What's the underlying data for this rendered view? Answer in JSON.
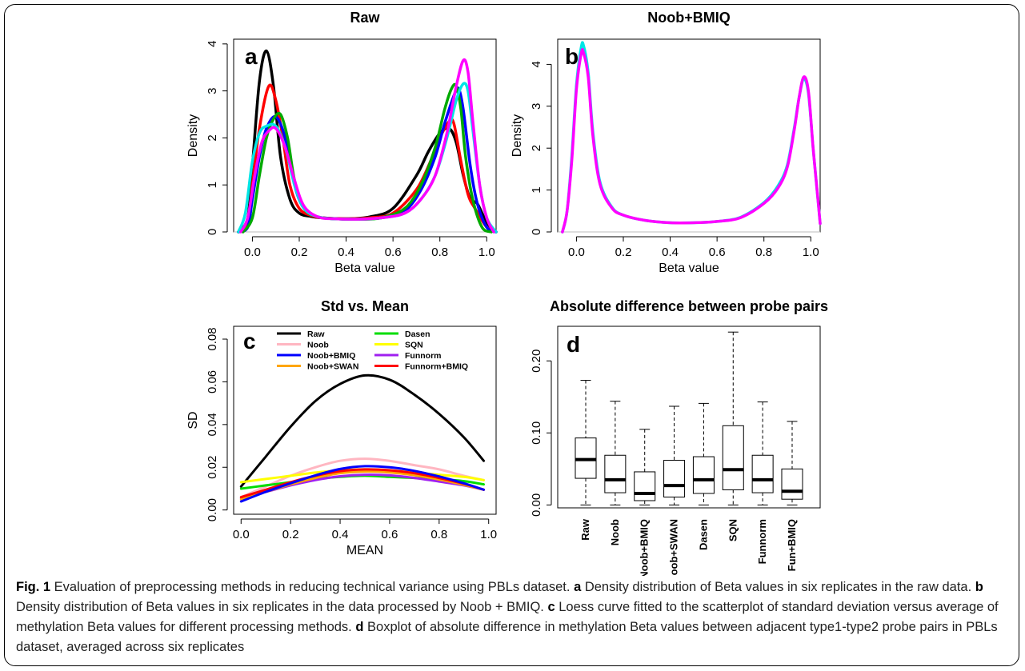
{
  "caption": {
    "fig_label": "Fig. 1",
    "intro": " Evaluation of preprocessing methods in reducing technical variance using PBLs dataset. ",
    "a_label": "a",
    "a_text": " Density distribution of Beta values in six replicates in the raw data. ",
    "b_label": "b",
    "b_text": " Density distribution of Beta values in six replicates in the data processed by Noob + BMIQ. ",
    "c_label": "c",
    "c_text": " Loess curve fitted to the scatterplot of standard deviation versus average of methylation Beta values for different processing methods. ",
    "d_label": "d",
    "d_text": " Boxplot of absolute difference in methylation Beta values between adjacent type1-type2 probe pairs in PBLs dataset, averaged across six replicates"
  },
  "chart_data": [
    {
      "panel": "a",
      "type": "line",
      "title": "Raw",
      "xlabel": "Beta value",
      "ylabel": "Density",
      "xlim": [
        -0.08,
        1.04
      ],
      "ylim": [
        0,
        4.1
      ],
      "xticks": [
        "0.0",
        "0.2",
        "0.4",
        "0.6",
        "0.8",
        "1.0"
      ],
      "yticks": [
        "0",
        "1",
        "2",
        "3",
        "4"
      ],
      "series": [
        {
          "color": "#000000",
          "x": [
            -0.06,
            -0.02,
            0.0,
            0.03,
            0.06,
            0.09,
            0.12,
            0.16,
            0.2,
            0.25,
            0.3,
            0.4,
            0.5,
            0.6,
            0.7,
            0.75,
            0.8,
            0.84,
            0.87,
            0.9,
            0.93,
            0.96,
            1.0,
            1.04
          ],
          "y": [
            0,
            0.3,
            1.4,
            3.2,
            3.85,
            3.1,
            1.6,
            0.7,
            0.4,
            0.33,
            0.3,
            0.28,
            0.32,
            0.5,
            1.2,
            1.7,
            2.1,
            2.2,
            1.9,
            1.2,
            0.7,
            0.6,
            0.2,
            0
          ]
        },
        {
          "color": "#ff0000",
          "x": [
            -0.06,
            -0.02,
            0.0,
            0.03,
            0.07,
            0.1,
            0.13,
            0.16,
            0.2,
            0.25,
            0.3,
            0.4,
            0.5,
            0.6,
            0.7,
            0.76,
            0.8,
            0.84,
            0.86,
            0.89,
            0.92,
            0.95,
            1.0,
            1.04
          ],
          "y": [
            0,
            0.2,
            1.0,
            2.2,
            3.1,
            2.8,
            2.0,
            1.0,
            0.5,
            0.35,
            0.3,
            0.28,
            0.3,
            0.4,
            0.9,
            1.5,
            2.0,
            2.35,
            2.3,
            1.5,
            0.8,
            0.5,
            0.1,
            0
          ]
        },
        {
          "color": "#0000ff",
          "x": [
            -0.06,
            -0.02,
            0.0,
            0.03,
            0.06,
            0.1,
            0.14,
            0.18,
            0.22,
            0.28,
            0.35,
            0.45,
            0.55,
            0.65,
            0.72,
            0.78,
            0.82,
            0.86,
            0.88,
            0.9,
            0.93,
            0.96,
            1.0,
            1.04
          ],
          "y": [
            0,
            0.1,
            0.7,
            1.6,
            2.2,
            2.45,
            2.0,
            1.0,
            0.5,
            0.32,
            0.28,
            0.27,
            0.3,
            0.45,
            0.9,
            1.6,
            2.3,
            2.9,
            3.05,
            2.6,
            1.4,
            0.6,
            0.1,
            0
          ]
        },
        {
          "color": "#00aa00",
          "x": [
            -0.04,
            0.0,
            0.03,
            0.06,
            0.09,
            0.12,
            0.15,
            0.18,
            0.22,
            0.28,
            0.35,
            0.45,
            0.55,
            0.65,
            0.72,
            0.78,
            0.82,
            0.85,
            0.87,
            0.89,
            0.91,
            0.94,
            0.98,
            1.02
          ],
          "y": [
            0,
            0.3,
            1.2,
            2.0,
            2.4,
            2.5,
            2.0,
            1.1,
            0.5,
            0.32,
            0.28,
            0.27,
            0.3,
            0.5,
            1.0,
            1.8,
            2.6,
            3.05,
            3.1,
            2.6,
            1.6,
            0.7,
            0.1,
            0
          ]
        },
        {
          "color": "#00e5e5",
          "x": [
            -0.06,
            -0.03,
            0.0,
            0.03,
            0.06,
            0.1,
            0.14,
            0.18,
            0.22,
            0.28,
            0.35,
            0.45,
            0.55,
            0.65,
            0.72,
            0.78,
            0.83,
            0.87,
            0.9,
            0.92,
            0.94,
            0.97,
            1.0,
            1.04
          ],
          "y": [
            0,
            0.4,
            1.5,
            2.1,
            2.25,
            2.25,
            1.8,
            1.0,
            0.5,
            0.32,
            0.28,
            0.27,
            0.3,
            0.4,
            0.7,
            1.2,
            2.0,
            2.8,
            3.15,
            3.0,
            2.2,
            1.0,
            0.3,
            0
          ]
        },
        {
          "color": "#ff00ff",
          "x": [
            -0.05,
            -0.02,
            0.01,
            0.04,
            0.07,
            0.1,
            0.14,
            0.18,
            0.22,
            0.28,
            0.35,
            0.45,
            0.55,
            0.65,
            0.72,
            0.78,
            0.83,
            0.87,
            0.9,
            0.92,
            0.94,
            0.97,
            1.0,
            1.03
          ],
          "y": [
            0,
            0.3,
            1.2,
            1.9,
            2.15,
            2.2,
            1.8,
            1.1,
            0.55,
            0.32,
            0.28,
            0.27,
            0.3,
            0.4,
            0.7,
            1.2,
            2.1,
            3.1,
            3.65,
            3.4,
            2.4,
            1.0,
            0.3,
            0
          ]
        }
      ]
    },
    {
      "panel": "b",
      "type": "line",
      "title": "Noob+BMIQ",
      "xlabel": "Beta value",
      "ylabel": "Density",
      "xlim": [
        -0.08,
        1.04
      ],
      "ylim": [
        0,
        4.6
      ],
      "xticks": [
        "0.0",
        "0.2",
        "0.4",
        "0.6",
        "0.8",
        "1.0"
      ],
      "yticks": [
        "0",
        "1",
        "2",
        "3",
        "4"
      ],
      "series": [
        {
          "color": "#00e5e5",
          "x": [
            -0.06,
            -0.04,
            -0.02,
            0.0,
            0.02,
            0.03,
            0.05,
            0.07,
            0.1,
            0.15,
            0.2,
            0.3,
            0.4,
            0.5,
            0.6,
            0.7,
            0.8,
            0.86,
            0.9,
            0.93,
            0.95,
            0.97,
            0.99,
            1.01,
            1.03,
            1.04
          ],
          "y": [
            0,
            0.5,
            1.8,
            3.5,
            4.4,
            4.45,
            3.8,
            2.4,
            1.2,
            0.6,
            0.4,
            0.27,
            0.22,
            0.22,
            0.25,
            0.35,
            0.7,
            1.1,
            1.6,
            2.5,
            3.2,
            3.65,
            3.3,
            2.0,
            0.8,
            0.2
          ]
        },
        {
          "color": "#ff00ff",
          "x": [
            -0.06,
            -0.04,
            -0.02,
            0.0,
            0.02,
            0.03,
            0.05,
            0.07,
            0.1,
            0.15,
            0.2,
            0.3,
            0.4,
            0.5,
            0.6,
            0.7,
            0.8,
            0.86,
            0.9,
            0.93,
            0.95,
            0.97,
            0.99,
            1.01,
            1.03,
            1.04
          ],
          "y": [
            0,
            0.5,
            1.7,
            3.4,
            4.25,
            4.28,
            3.7,
            2.3,
            1.15,
            0.58,
            0.4,
            0.27,
            0.22,
            0.22,
            0.25,
            0.34,
            0.68,
            1.05,
            1.55,
            2.45,
            3.2,
            3.7,
            3.35,
            2.0,
            0.8,
            0.2
          ]
        }
      ]
    },
    {
      "panel": "c",
      "type": "line",
      "title": "Std vs. Mean",
      "xlabel": "MEAN",
      "ylabel": "SD",
      "xlim": [
        -0.03,
        1.03
      ],
      "ylim": [
        -0.002,
        0.086
      ],
      "xticks": [
        "0.0",
        "0.2",
        "0.4",
        "0.6",
        "0.8",
        "1.0"
      ],
      "yticks": [
        "0.00",
        "0.02",
        "0.04",
        "0.06",
        "0.08"
      ],
      "legend": [
        "Raw",
        "Noob",
        "Noob+BMIQ",
        "Noob+SWAN",
        "Dasen",
        "SQN",
        "Funnorm",
        "Funnorm+BMIQ"
      ],
      "legend_colors": [
        "#000000",
        "#ffb6c1",
        "#0000ff",
        "#ffa500",
        "#00dd00",
        "#ffff00",
        "#a020f0",
        "#ff0000"
      ],
      "series": [
        {
          "color": "#000000",
          "x": [
            0.0,
            0.1,
            0.2,
            0.3,
            0.4,
            0.5,
            0.6,
            0.7,
            0.8,
            0.9,
            0.98
          ],
          "y": [
            0.011,
            0.025,
            0.039,
            0.051,
            0.059,
            0.063,
            0.061,
            0.054,
            0.045,
            0.034,
            0.023
          ]
        },
        {
          "color": "#ffb6c1",
          "x": [
            0.0,
            0.1,
            0.2,
            0.3,
            0.4,
            0.5,
            0.6,
            0.7,
            0.8,
            0.9,
            0.98
          ],
          "y": [
            0.006,
            0.011,
            0.016,
            0.02,
            0.023,
            0.024,
            0.023,
            0.021,
            0.019,
            0.016,
            0.014
          ]
        },
        {
          "color": "#ffff00",
          "x": [
            0.0,
            0.1,
            0.2,
            0.3,
            0.4,
            0.5,
            0.6,
            0.7,
            0.8,
            0.9,
            0.98
          ],
          "y": [
            0.013,
            0.0145,
            0.016,
            0.0175,
            0.0185,
            0.019,
            0.0185,
            0.0175,
            0.0165,
            0.0155,
            0.014
          ]
        },
        {
          "color": "#00dd00",
          "x": [
            0.0,
            0.1,
            0.2,
            0.3,
            0.4,
            0.5,
            0.6,
            0.7,
            0.8,
            0.9,
            0.98
          ],
          "y": [
            0.01,
            0.0115,
            0.013,
            0.0145,
            0.0155,
            0.016,
            0.0155,
            0.015,
            0.0145,
            0.0135,
            0.012
          ]
        },
        {
          "color": "#a020f0",
          "x": [
            0.0,
            0.1,
            0.2,
            0.3,
            0.4,
            0.5,
            0.6,
            0.7,
            0.8,
            0.9,
            0.98
          ],
          "y": [
            0.0055,
            0.0085,
            0.0115,
            0.014,
            0.0158,
            0.0165,
            0.0162,
            0.015,
            0.0133,
            0.0115,
            0.0095
          ]
        },
        {
          "color": "#ffa500",
          "x": [
            0.0,
            0.1,
            0.2,
            0.3,
            0.4,
            0.5,
            0.6,
            0.7,
            0.8,
            0.9,
            0.98
          ],
          "y": [
            0.005,
            0.0085,
            0.012,
            0.015,
            0.0172,
            0.018,
            0.0176,
            0.0163,
            0.0143,
            0.0118,
            0.0095
          ]
        },
        {
          "color": "#ff0000",
          "x": [
            0.0,
            0.1,
            0.2,
            0.3,
            0.4,
            0.5,
            0.6,
            0.7,
            0.8,
            0.9,
            0.98
          ],
          "y": [
            0.006,
            0.0095,
            0.013,
            0.016,
            0.0182,
            0.019,
            0.0186,
            0.0172,
            0.015,
            0.0123,
            0.0095
          ]
        },
        {
          "color": "#0000ff",
          "x": [
            0.0,
            0.1,
            0.2,
            0.3,
            0.4,
            0.5,
            0.6,
            0.7,
            0.8,
            0.9,
            0.98
          ],
          "y": [
            0.004,
            0.0085,
            0.0125,
            0.0162,
            0.0192,
            0.0205,
            0.02,
            0.0183,
            0.0157,
            0.0125,
            0.0095
          ]
        }
      ]
    },
    {
      "panel": "d",
      "type": "box",
      "title": "Absolute difference between probe pairs",
      "ylim": [
        -0.004,
        0.248
      ],
      "yticks": [
        "0.00",
        "0.10",
        "0.20"
      ],
      "categories": [
        "Raw",
        "Noob",
        "Noob+BMIQ",
        "Noob+SWAN",
        "Dasen",
        "SQN",
        "Funnorm",
        "Fun+BMIQ"
      ],
      "boxes": [
        {
          "min": 0.0,
          "q1": 0.037,
          "median": 0.063,
          "q3": 0.093,
          "max": 0.173
        },
        {
          "min": 0.0,
          "q1": 0.017,
          "median": 0.035,
          "q3": 0.069,
          "max": 0.144
        },
        {
          "min": 0.0,
          "q1": 0.006,
          "median": 0.016,
          "q3": 0.046,
          "max": 0.105
        },
        {
          "min": 0.0,
          "q1": 0.011,
          "median": 0.027,
          "q3": 0.062,
          "max": 0.137
        },
        {
          "min": 0.0,
          "q1": 0.016,
          "median": 0.035,
          "q3": 0.067,
          "max": 0.141
        },
        {
          "min": 0.0,
          "q1": 0.021,
          "median": 0.049,
          "q3": 0.11,
          "max": 0.24
        },
        {
          "min": 0.0,
          "q1": 0.017,
          "median": 0.035,
          "q3": 0.069,
          "max": 0.143
        },
        {
          "min": 0.0,
          "q1": 0.008,
          "median": 0.019,
          "q3": 0.05,
          "max": 0.116
        }
      ]
    }
  ]
}
